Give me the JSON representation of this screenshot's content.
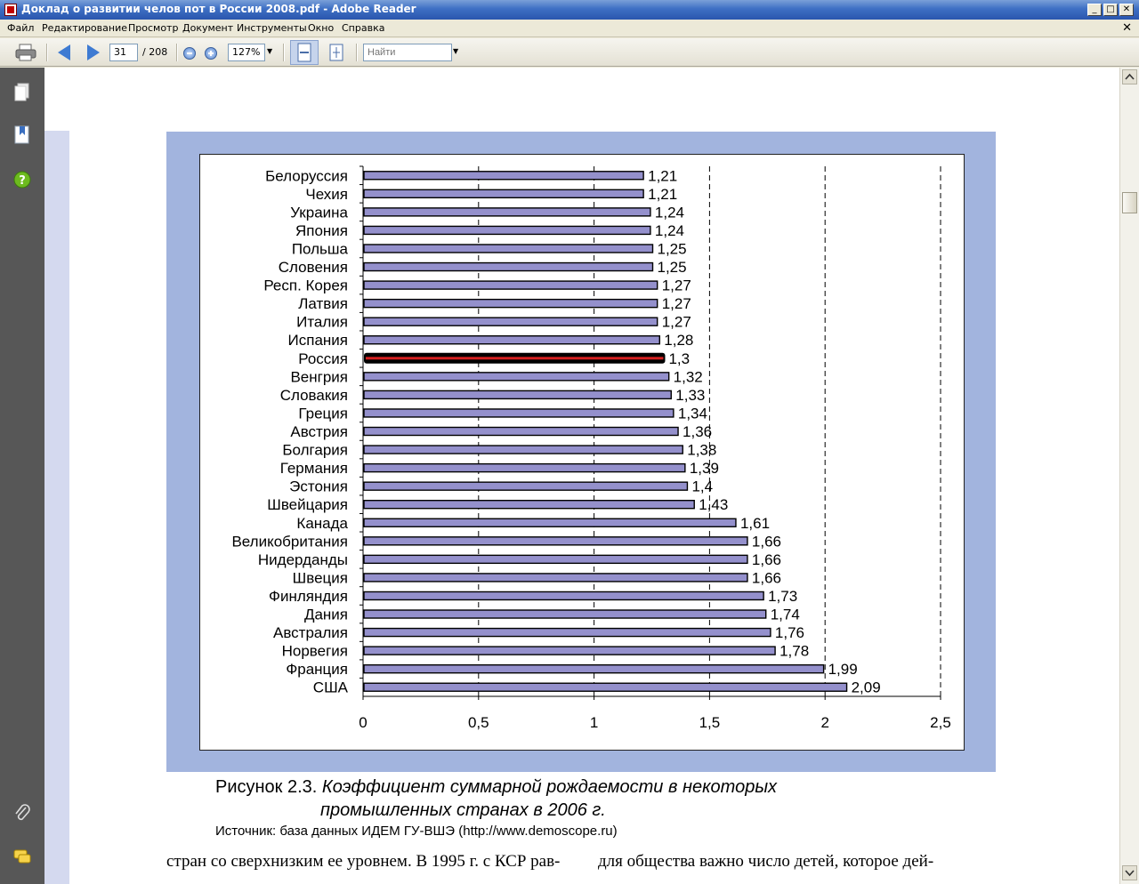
{
  "window": {
    "title": "Доклад о развитии челов пот в России 2008.pdf - Adobe Reader",
    "controls": [
      "_",
      "□",
      "✕"
    ]
  },
  "menu": {
    "items": [
      "Файл",
      "Редактирование",
      "Просмотр",
      "Документ",
      "Инструменты",
      "Окно",
      "Справка"
    ],
    "doc_close": "✕"
  },
  "toolbar": {
    "page_current": "31",
    "page_total": "/ 208",
    "zoom": "127%",
    "search_placeholder": "Найти"
  },
  "figure": {
    "caption_label": "Рисунок 2.3.",
    "caption_title_1": "Коэффициент суммарной рождаемости в некоторых",
    "caption_title_2": "промышленных странах в 2006 г.",
    "source": "Источник: база данных ИДЕМ ГУ-ВШЭ (http://www.demoscope.ru)"
  },
  "body_text": {
    "left_line": "стран со сверхнизким ее уровнем. В 1995 г. с КСР рав-",
    "right_line": "для общества важно число детей, которое дей-"
  },
  "chart_data": {
    "type": "bar",
    "orientation": "horizontal",
    "categories": [
      "Белоруссия",
      "Чехия",
      "Украина",
      "Япония",
      "Польша",
      "Словения",
      "Респ. Корея",
      "Латвия",
      "Италия",
      "Испания",
      "Россия",
      "Венгрия",
      "Словакия",
      "Греция",
      "Австрия",
      "Болгария",
      "Германия",
      "Эстония",
      "Швейцария",
      "Канада",
      "Великобритания",
      "Нидерданды",
      "Швеция",
      "Финляндия",
      "Дания",
      "Австралия",
      "Норвегия",
      "Франция",
      "США"
    ],
    "values": [
      1.21,
      1.21,
      1.24,
      1.24,
      1.25,
      1.25,
      1.27,
      1.27,
      1.27,
      1.28,
      1.3,
      1.32,
      1.33,
      1.34,
      1.36,
      1.38,
      1.39,
      1.4,
      1.43,
      1.61,
      1.66,
      1.66,
      1.66,
      1.73,
      1.74,
      1.76,
      1.78,
      1.99,
      2.09
    ],
    "value_labels": [
      "1,21",
      "1,21",
      "1,24",
      "1,24",
      "1,25",
      "1,25",
      "1,27",
      "1,27",
      "1,27",
      "1,28",
      "1,3",
      "1,32",
      "1,33",
      "1,34",
      "1,36",
      "1,38",
      "1,39",
      "1,4",
      "1,43",
      "1,61",
      "1,66",
      "1,66",
      "1,66",
      "1,73",
      "1,74",
      "1,76",
      "1,78",
      "1,99",
      "2,09"
    ],
    "highlighted": "Россия",
    "xlim": [
      0,
      2.5
    ],
    "xticks": [
      0,
      0.5,
      1,
      1.5,
      2,
      2.5
    ],
    "xtick_labels": [
      "0",
      "0,5",
      "1",
      "1,5",
      "2",
      "2,5"
    ],
    "grid": "vertical dashed",
    "colors": {
      "bar": "#9490cc",
      "bar_edge": "#000000",
      "highlight_bar": "#d42020",
      "highlight_edge": "#000000",
      "chart_bg": "#a2b4de"
    }
  }
}
